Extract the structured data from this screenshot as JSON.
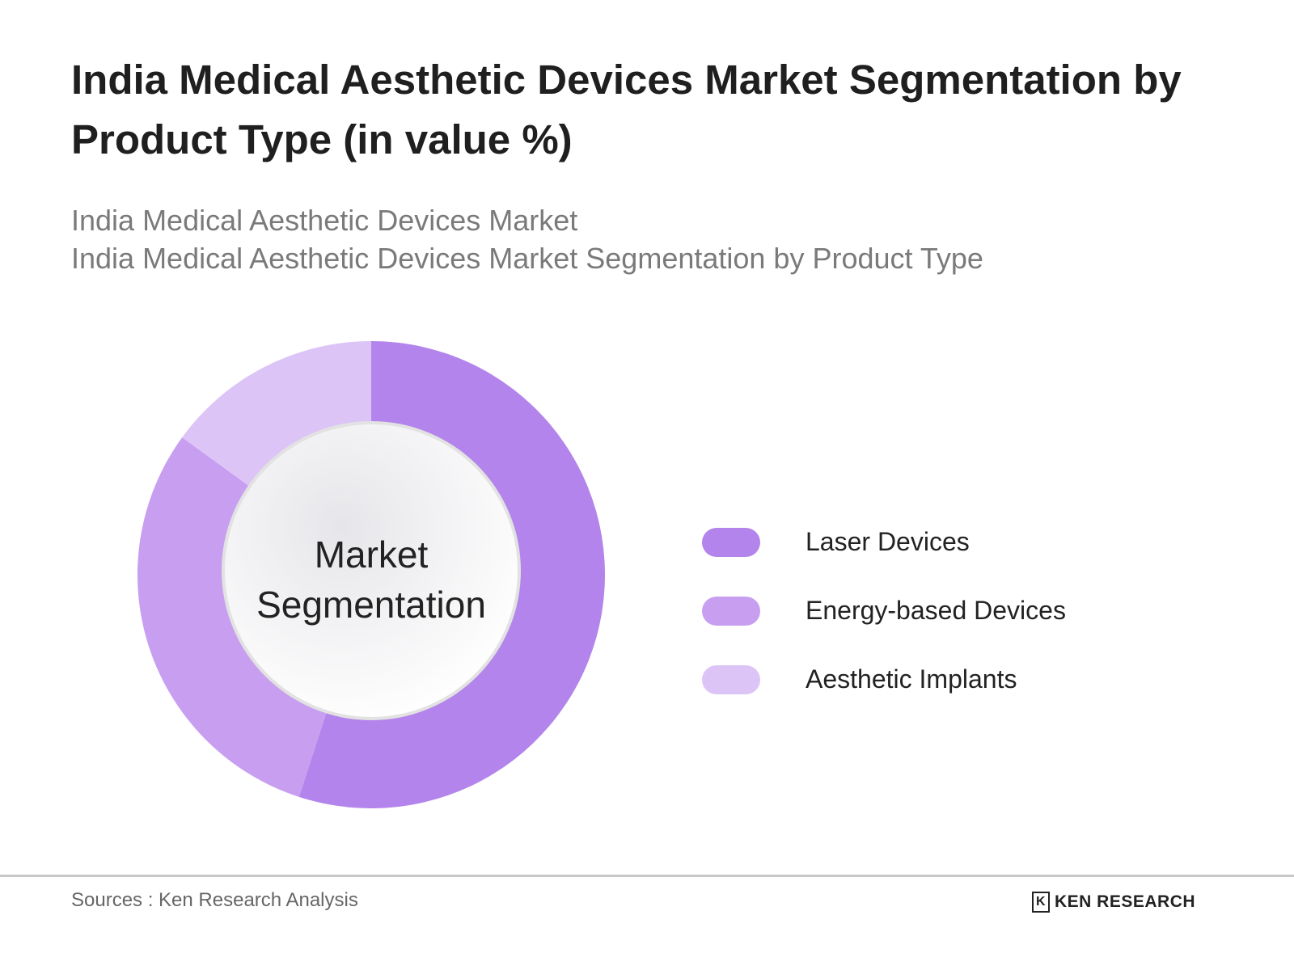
{
  "title": "India Medical Aesthetic Devices Market Segmentation by Product Type (in value %)",
  "subtitle_lines": [
    "India Medical Aesthetic Devices Market",
    "India Medical Aesthetic Devices Market Segmentation by Product Type"
  ],
  "chart_data": {
    "type": "pie",
    "variant": "donut",
    "center_label": [
      "Market",
      "Segmentation"
    ],
    "categories": [
      "Laser Devices",
      "Energy-based Devices",
      "Aesthetic Implants"
    ],
    "values": [
      55,
      30,
      15
    ],
    "colors": [
      "#b384eb",
      "#c89ff0",
      "#ddc4f7"
    ],
    "legend_position": "right",
    "start_angle": "top, clockwise"
  },
  "footer": {
    "source": "Sources : Ken Research Analysis",
    "logo_text": "KEN RESEARCH"
  }
}
